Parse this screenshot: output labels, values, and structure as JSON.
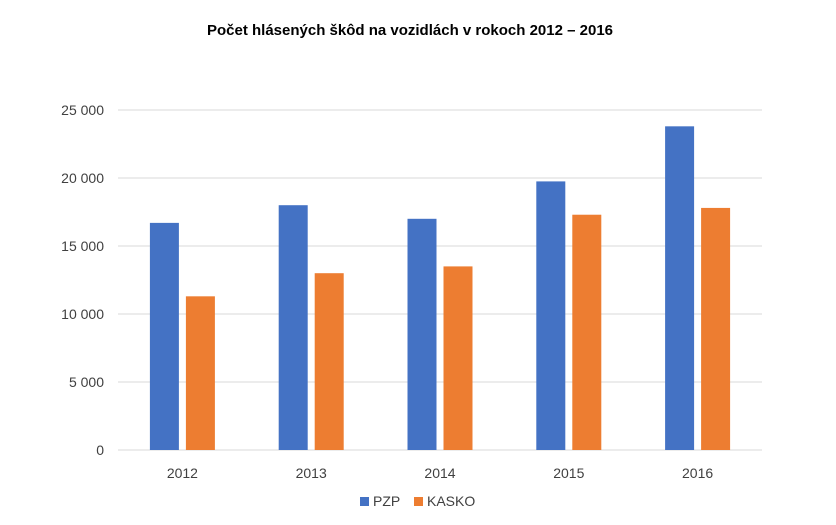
{
  "chart_data": {
    "type": "bar",
    "title": "Počet hlásených škôd na vozidlách v rokoch 2012 – 2016",
    "categories": [
      "2012",
      "2013",
      "2014",
      "2015",
      "2016"
    ],
    "series": [
      {
        "name": "PZP",
        "color": "#4472C4",
        "values": [
          16700,
          18000,
          17000,
          19750,
          23800
        ]
      },
      {
        "name": "KASKO",
        "color": "#ED7D31",
        "values": [
          11300,
          13000,
          13500,
          17300,
          17800
        ]
      }
    ],
    "ylim": [
      0,
      25000
    ],
    "yticks": [
      0,
      5000,
      10000,
      15000,
      20000,
      25000
    ],
    "ytick_labels": [
      "0",
      "5 000",
      "10 000",
      "15 000",
      "20 000",
      "25 000"
    ],
    "grid": true,
    "legend_position": "bottom",
    "gridline_color": "#d9d9d9"
  }
}
